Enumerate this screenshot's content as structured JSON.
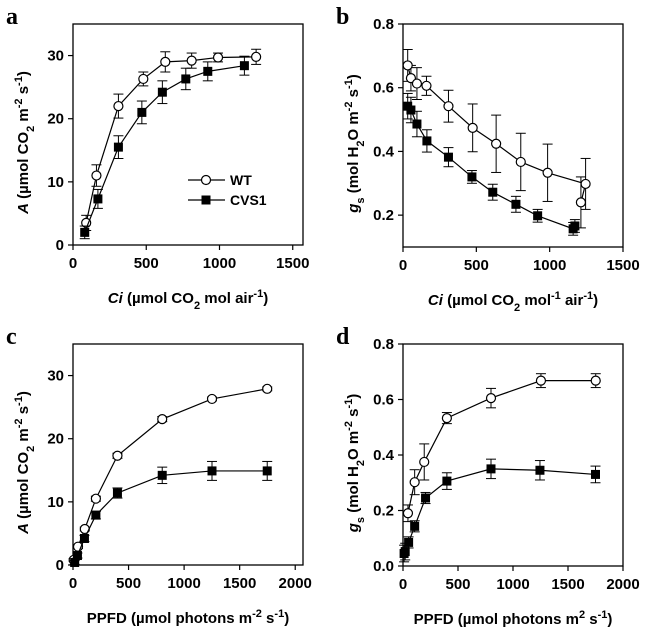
{
  "chart_data": [
    {
      "type": "line",
      "panel": "a",
      "xlabel": [
        {
          "t": "Ci",
          "i": true
        },
        {
          "t": " (µmol CO"
        },
        {
          "t": "2",
          "s": "sub"
        },
        {
          "t": " mol air"
        },
        {
          "t": "-1",
          "s": "sup"
        },
        {
          "t": ")"
        }
      ],
      "ylabel": [
        {
          "t": "A",
          "i": true
        },
        {
          "t": " (µmol CO"
        },
        {
          "t": "2",
          "s": "sub"
        },
        {
          "t": " m"
        },
        {
          "t": "-2",
          "s": "sup"
        },
        {
          "t": " s"
        },
        {
          "t": "-1",
          "s": "sup"
        },
        {
          "t": ")"
        }
      ],
      "xlim": [
        0,
        1570
      ],
      "ylim": [
        0,
        35
      ],
      "xticks": [
        0,
        500,
        1000,
        1500
      ],
      "yticks": [
        0,
        10,
        20,
        30
      ],
      "legend": {
        "placement": "center-right",
        "entries": [
          "WT",
          "CVS1"
        ]
      },
      "series": [
        {
          "name": "WT",
          "marker": "open-circle",
          "x": [
            90,
            160,
            310,
            480,
            630,
            810,
            990,
            1250
          ],
          "y": [
            3.5,
            11,
            22,
            26.3,
            29,
            29.2,
            29.7,
            29.8
          ],
          "err": [
            1.2,
            1.7,
            1.9,
            1.1,
            1.6,
            1.2,
            0.7,
            1.2
          ]
        },
        {
          "name": "CVS1",
          "marker": "filled-square",
          "x": [
            80,
            170,
            310,
            470,
            610,
            770,
            920,
            1170
          ],
          "y": [
            2,
            7.3,
            15.5,
            21,
            24.2,
            26.3,
            27.5,
            28.4
          ],
          "err": [
            1,
            1.5,
            1.8,
            1.8,
            1.8,
            1.7,
            1.5,
            1.5
          ]
        }
      ]
    },
    {
      "type": "line",
      "panel": "b",
      "xlabel": [
        {
          "t": "Ci",
          "i": true
        },
        {
          "t": " (µmol CO"
        },
        {
          "t": "2",
          "s": "sub"
        },
        {
          "t": " mol"
        },
        {
          "t": "-1",
          "s": "sup"
        },
        {
          "t": " air"
        },
        {
          "t": "-1",
          "s": "sup"
        },
        {
          "t": ")"
        }
      ],
      "ylabel": [
        {
          "t": "g",
          "i": true
        },
        {
          "t": "s",
          "s": "sub"
        },
        {
          "t": " (mol H"
        },
        {
          "t": "2",
          "s": "sub"
        },
        {
          "t": "O m"
        },
        {
          "t": "-2",
          "s": "sup"
        },
        {
          "t": " s"
        },
        {
          "t": "-1",
          "s": "sup"
        },
        {
          "t": ")"
        }
      ],
      "xlim": [
        0,
        1500
      ],
      "ylim": [
        0.1,
        0.8
      ],
      "xticks": [
        0,
        500,
        1000,
        1500
      ],
      "yticks": [
        0.2,
        0.4,
        0.6,
        0.8
      ],
      "series": [
        {
          "name": "WT",
          "marker": "open-circle",
          "x": [
            32,
            54,
            95,
            160,
            310,
            475,
            635,
            803,
            986,
            1245,
            1213
          ],
          "y": [
            0.67,
            0.63,
            0.613,
            0.606,
            0.542,
            0.474,
            0.424,
            0.367,
            0.333,
            0.298,
            0.24
          ],
          "err": [
            0.05,
            0.04,
            0.05,
            0.03,
            0.05,
            0.075,
            0.09,
            0.09,
            0.09,
            0.08,
            0.08
          ]
        },
        {
          "name": "CVS1",
          "marker": "filled-square",
          "x": [
            32,
            54,
            95,
            163,
            310,
            470,
            612,
            770,
            918,
            1160,
            1172
          ],
          "y": [
            0.542,
            0.53,
            0.486,
            0.433,
            0.382,
            0.32,
            0.272,
            0.234,
            0.198,
            0.157,
            0.166
          ],
          "err": [
            0.04,
            0.04,
            0.04,
            0.035,
            0.03,
            0.02,
            0.025,
            0.025,
            0.02,
            0.02,
            0.02
          ]
        }
      ]
    },
    {
      "type": "line",
      "panel": "c",
      "xlabel": [
        {
          "t": "PPFD (µmol photons m"
        },
        {
          "t": "-2",
          "s": "sup"
        },
        {
          "t": " s"
        },
        {
          "t": "-1",
          "s": "sup"
        },
        {
          "t": ")"
        }
      ],
      "ylabel": [
        {
          "t": "A",
          "i": true
        },
        {
          "t": " (µmol CO"
        },
        {
          "t": "2",
          "s": "sub"
        },
        {
          "t": " m"
        },
        {
          "t": "-2",
          "s": "sup"
        },
        {
          "t": " s"
        },
        {
          "t": "-1",
          "s": "sup"
        },
        {
          "t": ")"
        }
      ],
      "xlim": [
        0,
        2070
      ],
      "ylim": [
        0,
        35
      ],
      "xticks": [
        0,
        500,
        1000,
        1500,
        2000
      ],
      "yticks": [
        0,
        10,
        20,
        30
      ],
      "series": [
        {
          "name": "WT",
          "marker": "open-circle",
          "x": [
            6,
            45,
            106,
            206,
            400,
            803,
            1251,
            1748
          ],
          "y": [
            0.8,
            2.9,
            5.7,
            10.5,
            17.3,
            23.1,
            26.3,
            27.9
          ],
          "err": [
            0.2,
            0.3,
            0.3,
            0.4,
            0.4,
            0.4,
            0.3,
            0.3
          ]
        },
        {
          "name": "CVS1",
          "marker": "filled-square",
          "x": [
            15,
            40,
            103,
            206,
            400,
            803,
            1251,
            1748
          ],
          "y": [
            0.4,
            1.5,
            4.2,
            7.9,
            11.4,
            14.2,
            14.9,
            14.9
          ],
          "err": [
            0.3,
            0.4,
            0.5,
            0.6,
            0.8,
            1.3,
            1.5,
            1.5
          ]
        }
      ]
    },
    {
      "type": "line",
      "panel": "d",
      "xlabel": [
        {
          "t": "PPFD (µmol photons m"
        },
        {
          "t": "2",
          "s": "sup"
        },
        {
          "t": "  s"
        },
        {
          "t": "-1",
          "s": "sup"
        },
        {
          "t": ")"
        }
      ],
      "ylabel": [
        {
          "t": "g",
          "i": true
        },
        {
          "t": "s",
          "s": "sub"
        },
        {
          "t": " (mol H"
        },
        {
          "t": "2",
          "s": "sub"
        },
        {
          "t": "O m"
        },
        {
          "t": "-2",
          "s": "sup"
        },
        {
          "t": " s"
        },
        {
          "t": "-1",
          "s": "sup"
        },
        {
          "t": ")"
        }
      ],
      "xlim": [
        0,
        2000
      ],
      "ylim": [
        0,
        0.8
      ],
      "xticks": [
        0,
        500,
        1000,
        1500,
        2000
      ],
      "yticks": [
        0.0,
        0.2,
        0.4,
        0.6,
        0.8
      ],
      "ytick_labels": [
        "0.0",
        "0.2",
        "0.4",
        "0.6",
        "0.8"
      ],
      "series": [
        {
          "name": "WT",
          "marker": "open-circle",
          "x": [
            45,
            106,
            193,
            399,
            800,
            1254,
            1752
          ],
          "y": [
            0.19,
            0.302,
            0.375,
            0.533,
            0.605,
            0.668,
            0.668
          ],
          "err": [
            0.03,
            0.045,
            0.065,
            0.02,
            0.035,
            0.025,
            0.025
          ]
        },
        {
          "name": "CVS1",
          "marker": "filled-square",
          "x": [
            10,
            20,
            51,
            106,
            205,
            399,
            800,
            1245,
            1750
          ],
          "y": [
            0.045,
            0.052,
            0.085,
            0.143,
            0.245,
            0.306,
            0.35,
            0.345,
            0.33
          ],
          "err": [
            0.03,
            0.03,
            0.02,
            0.02,
            0.02,
            0.03,
            0.035,
            0.035,
            0.03
          ]
        }
      ]
    }
  ]
}
